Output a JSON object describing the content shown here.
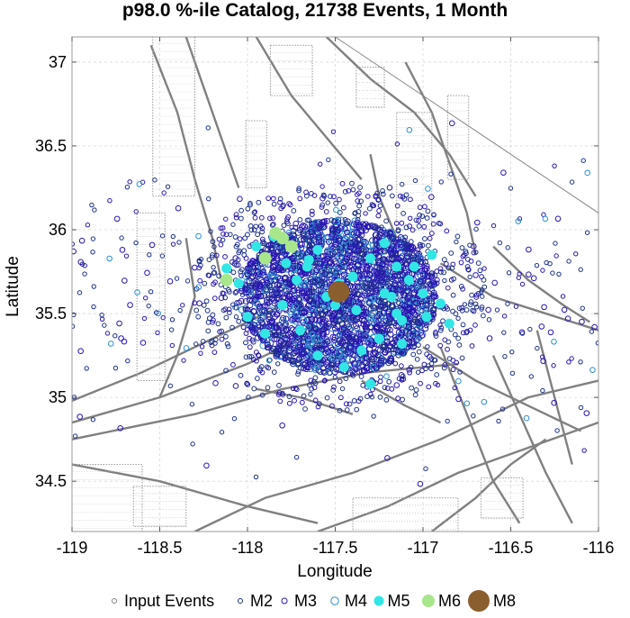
{
  "chart_data": {
    "type": "scatter",
    "title": "p98.0 %-ile Catalog, 21738 Events, 1 Month",
    "xlabel": "Longitude",
    "ylabel": "Latitude",
    "xlim": [
      -119,
      -116
    ],
    "ylim": [
      34.2,
      37.15
    ],
    "xticks": [
      -119,
      -118.5,
      -118,
      -117.5,
      -117,
      -116.5,
      -116
    ],
    "xtick_labels": [
      "-119",
      "-118.5",
      "-118",
      "-117.5",
      "-117",
      "-116.5",
      "-116"
    ],
    "yticks": [
      34.5,
      35,
      35.5,
      36,
      36.5,
      37
    ],
    "ytick_labels": [
      "34.5",
      "35",
      "35.5",
      "36",
      "36.5",
      "37"
    ],
    "grid": true,
    "legend_placement": "bottom",
    "legend": [
      "Input Events",
      "M2",
      "M3",
      "M4",
      "M5",
      "M6",
      "M8"
    ],
    "colors": {
      "input": "#808080",
      "m2": "#1c2f8c",
      "m3": "#2a14b4",
      "m4": "#2d8fd0",
      "m5": "#33e6e6",
      "m6": "#a8e68c",
      "m8": "#8b5e2e",
      "faults": "#808080",
      "grid": "#d9d9d9"
    },
    "cluster": {
      "center_lon": -117.48,
      "center_lat": 35.6,
      "radius_lon": 0.56,
      "radius_lat": 0.46
    },
    "series": [
      {
        "name": "M5",
        "points": [
          [
            -118.05,
            35.68
          ],
          [
            -117.95,
            35.9
          ],
          [
            -117.85,
            35.96
          ],
          [
            -117.78,
            35.8
          ],
          [
            -117.72,
            35.7
          ],
          [
            -117.66,
            35.78
          ],
          [
            -117.6,
            35.88
          ],
          [
            -117.55,
            35.6
          ],
          [
            -117.4,
            35.72
          ],
          [
            -117.3,
            35.83
          ],
          [
            -117.22,
            35.92
          ],
          [
            -117.15,
            35.78
          ],
          [
            -117.08,
            35.7
          ],
          [
            -117.0,
            35.62
          ],
          [
            -116.95,
            35.85
          ],
          [
            -116.9,
            35.56
          ],
          [
            -116.85,
            35.44
          ],
          [
            -117.12,
            35.46
          ],
          [
            -117.25,
            35.35
          ],
          [
            -117.35,
            35.28
          ],
          [
            -117.45,
            35.18
          ],
          [
            -117.6,
            35.25
          ],
          [
            -117.7,
            35.4
          ],
          [
            -117.8,
            35.55
          ],
          [
            -117.9,
            35.38
          ],
          [
            -118.0,
            35.48
          ],
          [
            -117.3,
            35.08
          ],
          [
            -117.15,
            35.5
          ],
          [
            -116.98,
            35.48
          ],
          [
            -117.18,
            35.6
          ],
          [
            -117.05,
            35.78
          ],
          [
            -117.48,
            35.68
          ],
          [
            -117.38,
            35.52
          ],
          [
            -118.12,
            35.77
          ],
          [
            -117.65,
            35.82
          ],
          [
            -117.22,
            35.62
          ],
          [
            -117.12,
            35.32
          ],
          [
            -117.5,
            35.55
          ]
        ]
      },
      {
        "name": "M6",
        "points": [
          [
            -117.84,
            35.98
          ],
          [
            -117.8,
            35.95
          ],
          [
            -117.75,
            35.9
          ],
          [
            -117.9,
            35.83
          ],
          [
            -118.12,
            35.7
          ]
        ]
      },
      {
        "name": "M8",
        "points": [
          [
            -117.48,
            35.63
          ]
        ]
      }
    ]
  }
}
